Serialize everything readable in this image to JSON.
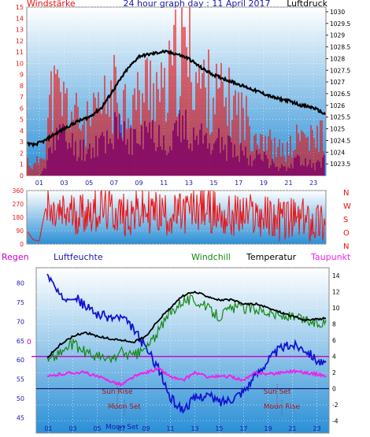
{
  "colors": {
    "wind_red": "#ee1111",
    "wind_blue": "#1010cc",
    "pressure": "#000000",
    "direction": "#ee1111",
    "temperature": "#000000",
    "windchill": "#118811",
    "dewpoint": "#ee22ee",
    "humidity": "#1414d0",
    "title_blue": "#1a1aaa",
    "gradient_top": "#ffffff",
    "gradient_bottom": "#2a8fd6"
  },
  "chart_data": [
    {
      "type": "line",
      "title": "24 hour graph day : 11 April 2017",
      "left_label": "Windstärke",
      "right_label": "Luftdruck",
      "x_ticks": [
        "01",
        "03",
        "05",
        "07",
        "09",
        "11",
        "13",
        "15",
        "17",
        "19",
        "21",
        "23"
      ],
      "y_left_ticks": [
        "0",
        "1",
        "2",
        "3",
        "4",
        "5",
        "6",
        "7",
        "8",
        "9",
        "10",
        "11",
        "12",
        "13",
        "14",
        "15"
      ],
      "y_left_range": [
        0,
        15
      ],
      "y_right_ticks": [
        "1023.5",
        "1024",
        "1024.5",
        "1025",
        "1025.5",
        "1026",
        "1026.5",
        "1027",
        "1027.5",
        "1028",
        "1028.5",
        "1029",
        "1029.5",
        "1030"
      ],
      "y_right_range": [
        1023.0,
        1030.2
      ],
      "series": [
        {
          "name": "Luftdruck",
          "x": [
            0,
            0.5,
            1,
            1.5,
            2,
            3,
            4,
            5,
            6,
            7,
            8,
            9,
            10,
            11,
            12,
            13,
            14,
            15,
            16,
            17,
            18,
            19,
            20,
            21,
            22,
            23,
            24
          ],
          "values": [
            1024.4,
            1024.3,
            1024.4,
            1024.5,
            1024.7,
            1025.0,
            1025.3,
            1025.5,
            1025.9,
            1026.7,
            1027.5,
            1028.1,
            1028.2,
            1028.3,
            1028.2,
            1028.0,
            1027.6,
            1027.3,
            1027.1,
            1026.9,
            1026.7,
            1026.5,
            1026.3,
            1026.2,
            1026.0,
            1025.9,
            1025.6
          ]
        },
        {
          "name": "Windstärke (gust)",
          "x": [
            0,
            0.5,
            1,
            1.5,
            2,
            3,
            4,
            5,
            6,
            7,
            8,
            9,
            10,
            11,
            12,
            13,
            14,
            15,
            16,
            17,
            18,
            19,
            20,
            21,
            22,
            23,
            24
          ],
          "values": [
            2,
            1,
            2,
            4,
            10,
            9,
            7,
            6,
            8,
            10,
            9,
            9,
            12,
            9,
            14,
            15,
            11,
            10,
            9,
            8,
            6,
            5,
            3,
            3,
            5,
            4,
            6
          ]
        },
        {
          "name": "Windstärke (mean)",
          "x": [
            0,
            0.5,
            1,
            1.5,
            2,
            3,
            4,
            5,
            6,
            7,
            8,
            9,
            10,
            11,
            12,
            13,
            14,
            15,
            16,
            17,
            18,
            19,
            20,
            21,
            22,
            23,
            24
          ],
          "values": [
            0,
            0,
            0,
            1,
            5,
            4,
            3,
            3,
            4,
            5,
            4,
            4,
            5,
            4,
            5,
            5,
            4,
            4,
            3,
            3,
            2,
            2,
            1,
            1,
            2,
            1,
            2
          ]
        }
      ]
    },
    {
      "type": "line",
      "title": "",
      "y_left_ticks": [
        "0",
        "90",
        "180",
        "270",
        "360"
      ],
      "y_left_range": [
        0,
        360
      ],
      "y_right_labels": [
        "N",
        "W",
        "S",
        "O",
        "N"
      ],
      "series": [
        {
          "name": "Windrichtung",
          "x": [
            0,
            0.5,
            1,
            1.5,
            2,
            4,
            6,
            8,
            10,
            12,
            14,
            16,
            18,
            20,
            22,
            24
          ],
          "values": [
            90,
            30,
            20,
            240,
            180,
            210,
            230,
            200,
            220,
            190,
            250,
            180,
            200,
            170,
            160,
            150
          ]
        }
      ]
    },
    {
      "type": "line",
      "title": "",
      "legend": [
        "Regen",
        "Luftfeuchte",
        "Windchill",
        "Temperatur",
        "Taupunkt"
      ],
      "x_ticks": [
        "01",
        "03",
        "05",
        "07",
        "09",
        "11",
        "13",
        "15",
        "17",
        "19",
        "21",
        "23"
      ],
      "y_left_ticks": [
        "45",
        "50",
        "55",
        "60",
        "65",
        "70",
        "75",
        "80"
      ],
      "y_left_range": [
        41,
        84
      ],
      "y_right_ticks": [
        "-4",
        "-2",
        "0",
        "2",
        "4",
        "6",
        "8",
        "10",
        "12",
        "14"
      ],
      "y_right_range": [
        -5.5,
        15
      ],
      "zero_marker": "0",
      "annotations": [
        "Sun Rise",
        "Moon Set",
        "Sun Set",
        "Moon Rise",
        "Moon Set"
      ],
      "series": [
        {
          "name": "Temperatur",
          "x": [
            0,
            1,
            2,
            3,
            4,
            5,
            6,
            7,
            8,
            9,
            10,
            11,
            12,
            13,
            14,
            15,
            16,
            17,
            18,
            19,
            20,
            21,
            22,
            23,
            24
          ],
          "values": [
            4.0,
            4.0,
            5.5,
            6.5,
            7.0,
            6.5,
            6.2,
            6.0,
            5.8,
            6.5,
            8.5,
            10.0,
            11.5,
            12.0,
            11.5,
            11.0,
            11.0,
            10.5,
            10.5,
            10.0,
            9.5,
            9.0,
            8.5,
            8.6,
            8.8
          ]
        },
        {
          "name": "Windchill",
          "x": [
            0,
            1,
            2,
            3,
            4,
            5,
            6,
            7,
            8,
            9,
            10,
            11,
            12,
            13,
            14,
            15,
            16,
            17,
            18,
            19,
            20,
            21,
            22,
            23,
            24
          ],
          "values": [
            4.0,
            3.5,
            4.5,
            5.5,
            4.5,
            4.0,
            3.5,
            4.5,
            4.0,
            5.0,
            7.0,
            9.5,
            11.0,
            11.0,
            10.0,
            9.0,
            10.0,
            10.0,
            10.0,
            9.5,
            9.0,
            8.8,
            8.5,
            8.0,
            8.5
          ]
        },
        {
          "name": "Taupunkt",
          "x": [
            0,
            1,
            2,
            3,
            4,
            5,
            6,
            7,
            8,
            9,
            10,
            11,
            12,
            13,
            14,
            15,
            16,
            17,
            18,
            19,
            20,
            21,
            22,
            23,
            24
          ],
          "values": [
            2.0,
            1.5,
            1.8,
            2.0,
            2.0,
            1.5,
            1.0,
            0.5,
            1.5,
            2.0,
            2.5,
            1.5,
            1.0,
            2.0,
            1.5,
            1.5,
            1.5,
            1.0,
            2.0,
            1.8,
            2.0,
            2.2,
            2.0,
            1.8,
            1.5
          ]
        },
        {
          "name": "Luftfeuchte",
          "x": [
            0,
            1,
            2,
            3,
            4,
            5,
            6,
            7,
            8,
            9,
            10,
            11,
            12,
            13,
            14,
            15,
            16,
            17,
            18,
            19,
            20,
            21,
            22,
            23,
            24
          ],
          "values": [
            81,
            82,
            76,
            77,
            74,
            72,
            71,
            71,
            68,
            63,
            58,
            50,
            47,
            50,
            51,
            49,
            50,
            52,
            56,
            60,
            63,
            64,
            63,
            60,
            58
          ]
        },
        {
          "name": "Regen",
          "x": [
            0,
            24
          ],
          "values": [
            0,
            0
          ]
        }
      ]
    }
  ]
}
